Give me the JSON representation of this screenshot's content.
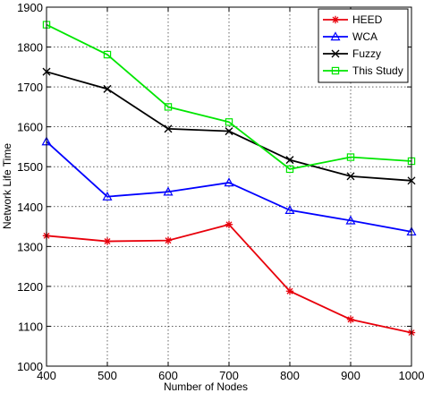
{
  "chart_data": {
    "type": "line",
    "title": "",
    "xlabel": "Number of Nodes",
    "ylabel": "Network Life Time",
    "x": [
      400,
      500,
      600,
      700,
      800,
      900,
      1000
    ],
    "xlim": [
      400,
      1000
    ],
    "ylim": [
      1000,
      1900
    ],
    "xticks": [
      "400",
      "500",
      "600",
      "700",
      "800",
      "900",
      "1000"
    ],
    "yticks": [
      "1000",
      "1100",
      "1200",
      "1300",
      "1400",
      "1500",
      "1600",
      "1700",
      "1800",
      "1900"
    ],
    "grid": true,
    "legend_position": "top-right",
    "series": [
      {
        "name": "HEED",
        "color": "#e8000b",
        "marker": "star",
        "values": [
          1327,
          1313,
          1315,
          1355,
          1188,
          1117,
          1084
        ]
      },
      {
        "name": "WCA",
        "color": "#0000ff",
        "marker": "triangle",
        "values": [
          1563,
          1425,
          1437,
          1460,
          1391,
          1365,
          1337
        ]
      },
      {
        "name": "Fuzzy",
        "color": "#000000",
        "marker": "x",
        "values": [
          1738,
          1695,
          1595,
          1589,
          1517,
          1476,
          1465
        ]
      },
      {
        "name": "This Study",
        "color": "#00e600",
        "marker": "square",
        "values": [
          1856,
          1781,
          1650,
          1612,
          1494,
          1524,
          1514
        ]
      }
    ]
  }
}
